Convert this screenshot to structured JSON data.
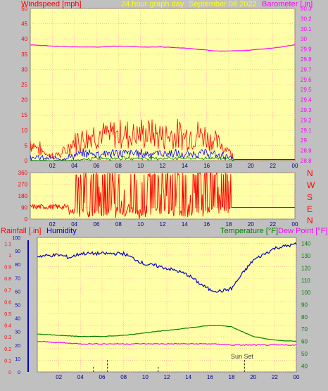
{
  "header": {
    "left_label": "Windspeed [mph]",
    "title": "24 hour graph day",
    "date": "September 08 2022",
    "right_label": "Barometer [.in]"
  },
  "compass_labels": [
    "N",
    "W",
    "S",
    "E",
    "N"
  ],
  "panel3_labels": {
    "rain": "Rainfall [.in]",
    "humidity": "Humidity",
    "temperature": "Temperature [°F]",
    "dewpoint": "Dew Point [°F]",
    "sunset": "Sun Set"
  },
  "colors": {
    "plot_bg": "#ffffa8",
    "page_bg": "#c0c0c0",
    "wind_gust": "#ff0000",
    "wind_avg": "#0000ff",
    "wind_low": "#008000",
    "barometer": "#ff00ff",
    "wind_dir": "#ff0000",
    "humidity": "#0000c0",
    "temperature": "#008000",
    "dewpoint": "#ff00ff",
    "grid": "#ffa0a0"
  },
  "chart_data": [
    {
      "type": "line",
      "x_unit": "hour",
      "x_range": [
        0,
        24
      ],
      "x_ticks": [
        "02",
        "04",
        "06",
        "08",
        "10",
        "12",
        "14",
        "16",
        "18",
        "20",
        "22",
        "00"
      ],
      "y_left": {
        "label": "Windspeed [mph]",
        "range": [
          0,
          50
        ],
        "ticks": [
          "0",
          "5",
          "10",
          "15",
          "20",
          "25",
          "30",
          "35",
          "40",
          "45",
          "50"
        ]
      },
      "y_right": {
        "label": "Barometer [.in]",
        "range": [
          28.8,
          30.3
        ],
        "ticks": [
          "28.8",
          "28.9",
          "29",
          "29.1",
          "29.2",
          "29.3",
          "29.4",
          "29.5",
          "29.6",
          "29.7",
          "29.8",
          "29.9",
          "30",
          "30.1",
          "30.2",
          "30.3"
        ]
      },
      "series": [
        {
          "name": "Barometer",
          "axis": "right",
          "x": [
            0,
            2,
            4,
            6,
            8,
            10,
            12,
            14,
            16,
            17,
            18,
            20,
            22,
            24
          ],
          "y": [
            29.94,
            29.93,
            29.92,
            29.92,
            29.93,
            29.92,
            29.92,
            29.91,
            29.89,
            29.88,
            29.88,
            29.89,
            29.91,
            29.94
          ]
        },
        {
          "axis": "left",
          "role": "gust",
          "x": [
            0,
            1,
            2,
            3,
            4,
            5,
            6,
            7,
            8,
            9,
            10,
            11,
            12,
            13,
            14,
            15,
            16,
            17,
            18,
            18.5
          ],
          "y": [
            8,
            4,
            2,
            3,
            8,
            10,
            11,
            10,
            11,
            11,
            11,
            11,
            10,
            11,
            10,
            11,
            10,
            7,
            5,
            0
          ]
        },
        {
          "axis": "left",
          "role": "average",
          "x": [
            0,
            1,
            2,
            3,
            4,
            5,
            6,
            7,
            8,
            9,
            10,
            11,
            12,
            13,
            14,
            15,
            16,
            17,
            18,
            18.5
          ],
          "y": [
            2,
            1,
            1,
            1,
            2,
            3,
            3,
            3,
            3,
            3,
            3,
            3,
            3,
            3,
            2,
            3,
            3,
            2,
            2,
            0
          ]
        },
        {
          "axis": "left",
          "role": "low",
          "x": [
            0,
            4,
            6,
            8,
            10,
            12,
            14,
            16,
            18,
            18.5
          ],
          "y": [
            0,
            0,
            1,
            1,
            1,
            1,
            1,
            1,
            1,
            0
          ]
        }
      ]
    },
    {
      "type": "line",
      "x_range": [
        0,
        24
      ],
      "x_ticks": [
        "02",
        "04",
        "06",
        "08",
        "10",
        "12",
        "14",
        "16",
        "18",
        "20",
        "22",
        "00"
      ],
      "y_range": [
        0,
        360
      ],
      "y_ticks": [
        "0",
        "90",
        "180",
        "270",
        "360"
      ],
      "series": [
        {
          "axis": "left",
          "role": "wind-direction",
          "x": [
            0,
            2,
            3.5,
            4,
            18,
            18.5,
            24
          ],
          "y": [
            90,
            100,
            90,
            30,
            90,
            90,
            90
          ]
        }
      ]
    },
    {
      "type": "line",
      "x_range": [
        0,
        24
      ],
      "x_ticks": [
        "02",
        "04",
        "06",
        "08",
        "10",
        "12",
        "14",
        "16",
        "18",
        "20",
        "22",
        "00"
      ],
      "y_left": {
        "label": "Rainfall [.in]",
        "range": [
          0,
          1.15
        ],
        "ticks": [
          "0",
          "0.1",
          "0.2",
          "0.3",
          "0.4",
          "0.5",
          "0.6",
          "0.7",
          "0.8",
          "0.9",
          "1",
          "1.1"
        ]
      },
      "y_humidity": {
        "label": "Humidity",
        "range": [
          0,
          100
        ],
        "ticks": [
          "0",
          "10",
          "20",
          "30",
          "40",
          "50",
          "60",
          "70",
          "80",
          "90",
          "100"
        ]
      },
      "y_right": {
        "label": "Temperature [°F] / Dew Point [°F]",
        "range": [
          35,
          145
        ],
        "ticks": [
          "40",
          "50",
          "60",
          "70",
          "80",
          "90",
          "100",
          "110",
          "120",
          "130",
          "140"
        ]
      },
      "series": [
        {
          "name": "Humidity",
          "axis": "humidity",
          "x": [
            0,
            2,
            3,
            4,
            6,
            8,
            9,
            10,
            11,
            12,
            13,
            14,
            15,
            16,
            17,
            18,
            19,
            20,
            22,
            24
          ],
          "y": [
            86,
            87,
            85,
            88,
            88,
            88,
            84,
            80,
            79,
            77,
            75,
            72,
            66,
            61,
            60,
            62,
            73,
            83,
            92,
            95
          ]
        },
        {
          "name": "Temperature [°F]",
          "axis": "right",
          "x": [
            0,
            2,
            4,
            6,
            8,
            10,
            12,
            14,
            16,
            17,
            18,
            19,
            20,
            22,
            24
          ],
          "y": [
            66,
            65,
            64,
            64,
            65,
            67,
            69,
            71,
            73,
            73,
            72,
            68,
            64,
            61,
            60
          ]
        },
        {
          "name": "Dew Point [°F]",
          "axis": "right",
          "x": [
            0,
            2,
            4,
            6,
            8,
            10,
            12,
            14,
            16,
            18,
            20,
            22,
            24
          ],
          "y": [
            60,
            59,
            58,
            58,
            58,
            58,
            58,
            58,
            58,
            57,
            57,
            57,
            57
          ]
        }
      ]
    }
  ]
}
